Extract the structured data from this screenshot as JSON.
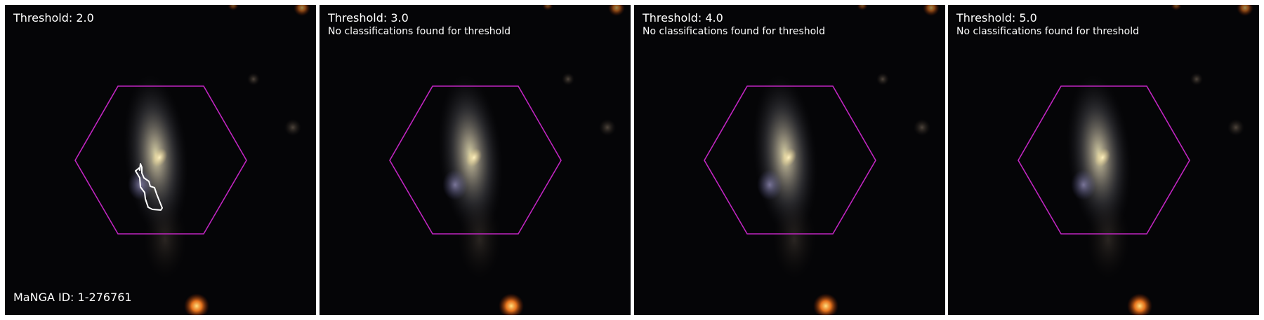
{
  "figure": {
    "manga_id_label": "MaNGA ID: 1-276761",
    "colors": {
      "hexagon": "#c025c0",
      "contour": "#ffffff",
      "text": "#ffffff",
      "background": "#050507"
    }
  },
  "panels": [
    {
      "threshold_label": "Threshold: 2.0",
      "message": "",
      "has_contour": true
    },
    {
      "threshold_label": "Threshold: 3.0",
      "message": "No classifications found for threshold",
      "has_contour": false
    },
    {
      "threshold_label": "Threshold: 4.0",
      "message": "No classifications found for threshold",
      "has_contour": false
    },
    {
      "threshold_label": "Threshold: 5.0",
      "message": "No classifications found for threshold",
      "has_contour": false
    }
  ]
}
